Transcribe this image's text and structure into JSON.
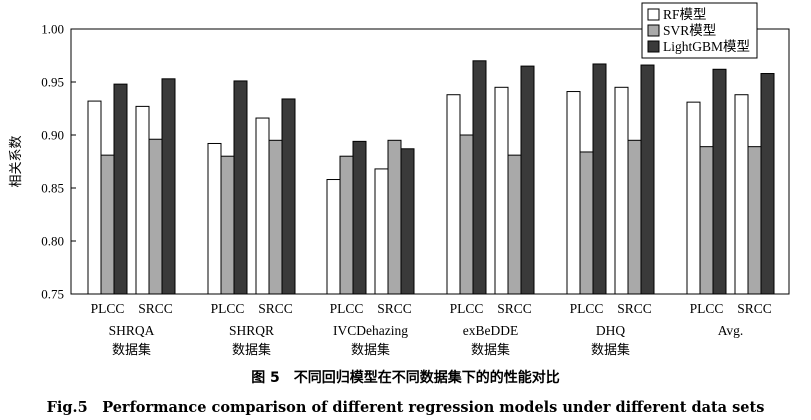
{
  "chart_data": {
    "type": "bar",
    "ylabel": "相关系数",
    "ylim": [
      0.75,
      1.0
    ],
    "yticks": [
      "0.75",
      "0.80",
      "0.85",
      "0.90",
      "0.95",
      "1.00"
    ],
    "legend_position": "top-right",
    "groups": [
      {
        "name": "SHRQA",
        "sub": "数据集"
      },
      {
        "name": "SHRQR",
        "sub": "数据集"
      },
      {
        "name": "IVCDehazing",
        "sub": "数据集"
      },
      {
        "name": "exBeDDE",
        "sub": "数据集"
      },
      {
        "name": "DHQ",
        "sub": "数据集"
      },
      {
        "name": "Avg.",
        "sub": ""
      }
    ],
    "metrics": [
      "PLCC",
      "SRCC"
    ],
    "series": [
      {
        "name": "RF模型",
        "color": "#ffffff",
        "values": [
          [
            0.932,
            0.927
          ],
          [
            0.892,
            0.916
          ],
          [
            0.858,
            0.868
          ],
          [
            0.938,
            0.945
          ],
          [
            0.941,
            0.945
          ],
          [
            0.931,
            0.938
          ]
        ]
      },
      {
        "name": "SVR模型",
        "color": "#a9a9a9",
        "values": [
          [
            0.881,
            0.896
          ],
          [
            0.88,
            0.895
          ],
          [
            0.88,
            0.895
          ],
          [
            0.9,
            0.881
          ],
          [
            0.884,
            0.895
          ],
          [
            0.889,
            0.889
          ]
        ]
      },
      {
        "name": "LightGBM模型",
        "color": "#3a3a3a",
        "values": [
          [
            0.948,
            0.953
          ],
          [
            0.951,
            0.934
          ],
          [
            0.894,
            0.887
          ],
          [
            0.97,
            0.965
          ],
          [
            0.967,
            0.966
          ],
          [
            0.962,
            0.958
          ]
        ]
      }
    ]
  },
  "caption": {
    "cn": "图 5　不同回归模型在不同数据集下的的性能对比",
    "en": "Fig.5　Performance comparison of different regression models under different data sets"
  }
}
